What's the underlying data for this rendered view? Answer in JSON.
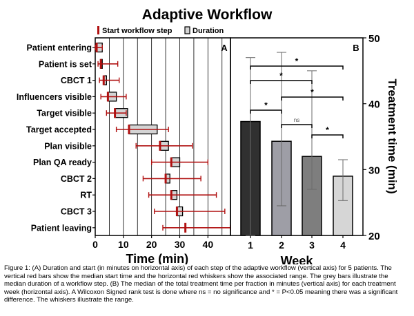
{
  "title": "Adaptive Workflow",
  "caption": "Figure 1: (A) Duration and start (in minutes on horizontal axis) of each step of the adaptive workflow (vertical axis) for 5 patients. The vertical red bars show the median start time and the horizontal red whiskers show the associated range. The grey bars illustrate the median duration of a workflow step. (B) The median of the total treatment time per fraction in minutes (vertical axis) for each treatment week (horizontal axis). A Wilcoxon Signed rank test is done where ns = no significance and * = P<0.05 meaning there was a significant difference. The whiskers illustrate the range.",
  "colors": {
    "red": "#b01010",
    "duration_fill": "#d4d4d4"
  },
  "chart_data": [
    {
      "panel": "A",
      "type": "bar",
      "orientation": "horizontal",
      "xlabel": "Time (min)",
      "xlim": [
        0,
        48
      ],
      "xticks": [
        0,
        10,
        20,
        30,
        40
      ],
      "grid": "vertical",
      "legend": {
        "position": "top",
        "entries": [
          "Start workflow step",
          "Duration"
        ]
      },
      "categories": [
        "Patient entering",
        "Patient is set",
        "CBCT 1",
        "Influencers visible",
        "Target visible",
        "Target accepted",
        "Plan visible",
        "Plan QA ready",
        "CBCT 2",
        "RT",
        "CBCT 3",
        "Patient leaving"
      ],
      "start_median": [
        0.5,
        2,
        3,
        4.5,
        7,
        12,
        23,
        27,
        25,
        27,
        29,
        32
      ],
      "start_min": [
        0,
        1,
        1.5,
        2,
        4,
        7.5,
        14.5,
        20,
        17,
        19,
        21,
        24
      ],
      "start_max": [
        2.5,
        8,
        8.5,
        11,
        11,
        26,
        34.5,
        40,
        37.5,
        43,
        46,
        48
      ],
      "duration": [
        2,
        0.5,
        1,
        3,
        4.5,
        10,
        3,
        3,
        1.5,
        2,
        2,
        0
      ]
    },
    {
      "panel": "B",
      "type": "bar",
      "xlabel": "Week",
      "ylabel": "Treatment time (min)",
      "ylim": [
        20,
        50
      ],
      "yticks": [
        20,
        30,
        40,
        50
      ],
      "categories": [
        "1",
        "2",
        "3",
        "4"
      ],
      "values": [
        37.3,
        34.3,
        32.0,
        29.0
      ],
      "whisker_low": [
        20,
        24.5,
        27.0,
        25.3
      ],
      "whisker_high": [
        47.0,
        47.8,
        45.0,
        31.5
      ],
      "bar_colors": [
        "#303030",
        "#9e9ea6",
        "#7e7e7e",
        "#d6d6d6"
      ],
      "significance": [
        {
          "pair": [
            1,
            4
          ],
          "label": "*"
        },
        {
          "pair": [
            1,
            3
          ],
          "label": "*"
        },
        {
          "pair": [
            2,
            4
          ],
          "label": "*"
        },
        {
          "pair": [
            1,
            2
          ],
          "label": "*"
        },
        {
          "pair": [
            2,
            3
          ],
          "label": "ns"
        },
        {
          "pair": [
            3,
            4
          ],
          "label": "*"
        }
      ]
    }
  ]
}
